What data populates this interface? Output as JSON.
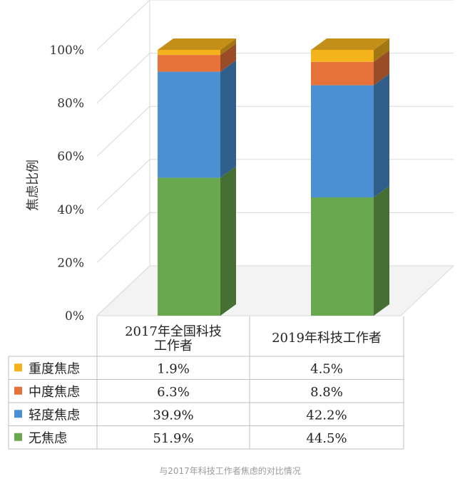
{
  "chart_data": {
    "type": "bar",
    "stacked": true,
    "three_d": true,
    "title": "",
    "ylabel": "焦虑比例",
    "xlabel": "",
    "ylim": [
      0,
      100
    ],
    "y_ticks": [
      "0%",
      "20%",
      "40%",
      "60%",
      "80%",
      "100%"
    ],
    "grid": true,
    "categories": [
      "2017年全国科技工作者",
      "2019年科技工作者"
    ],
    "series": [
      {
        "name": "无焦虑",
        "values": [
          51.9,
          44.5
        ],
        "color": "#6aa84f",
        "display": [
          "51.9%",
          "44.5%"
        ]
      },
      {
        "name": "轻度焦虑",
        "values": [
          39.9,
          42.2
        ],
        "color": "#4a90d2",
        "display": [
          "39.9%",
          "42.2%"
        ]
      },
      {
        "name": "中度焦虑",
        "values": [
          6.3,
          8.8
        ],
        "color": "#e8733a",
        "display": [
          "6.3%",
          "8.8%"
        ]
      },
      {
        "name": "重度焦虑",
        "values": [
          1.9,
          4.5
        ],
        "color": "#f5b31b",
        "display": [
          "1.9%",
          "4.5%"
        ]
      }
    ],
    "table_row_order": [
      "重度焦虑",
      "中度焦虑",
      "轻度焦虑",
      "无焦虑"
    ]
  },
  "caption": "与2017年科技工作者焦虑的对比情况"
}
